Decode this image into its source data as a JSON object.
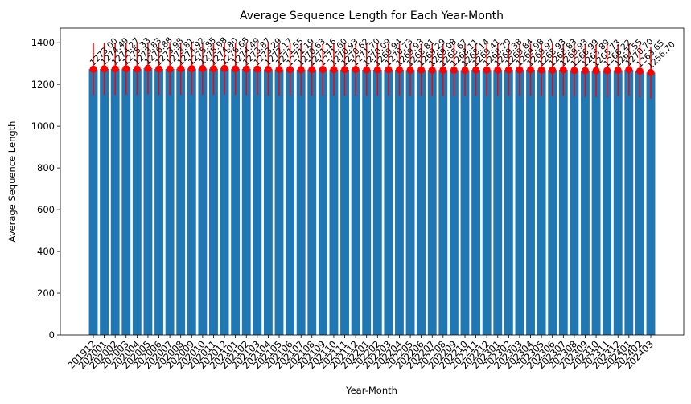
{
  "chart_data": {
    "type": "bar",
    "title": "Average Sequence Length for Each Year-Month",
    "xlabel": "Year-Month",
    "ylabel": "Average Sequence Length",
    "ylim": [
      0,
      1470
    ],
    "yticks": [
      0,
      200,
      400,
      600,
      800,
      1000,
      1200,
      1400
    ],
    "grid": false,
    "legend": "none",
    "colors": {
      "bar": "#1f77b4",
      "error": "#ff0000"
    },
    "categories": [
      "201912",
      "202001",
      "202002",
      "202003",
      "202004",
      "202005",
      "202006",
      "202007",
      "202008",
      "202009",
      "202010",
      "202011",
      "202012",
      "202101",
      "202102",
      "202103",
      "202104",
      "202105",
      "202106",
      "202107",
      "202108",
      "202109",
      "202110",
      "202111",
      "202112",
      "202201",
      "202202",
      "202203",
      "202204",
      "202205",
      "202206",
      "202207",
      "202208",
      "202209",
      "202210",
      "202211",
      "202212",
      "202301",
      "202302",
      "202303",
      "202304",
      "202305",
      "202306",
      "202307",
      "202308",
      "202309",
      "202310",
      "202311",
      "202312",
      "202401",
      "202402",
      "202403"
    ],
    "values": [
      1273.0,
      1274.49,
      1274.27,
      1275.33,
      1273.83,
      1276.88,
      1273.98,
      1273.81,
      1274.92,
      1275.85,
      1275.98,
      1274.8,
      1276.68,
      1274.49,
      1273.87,
      1273.29,
      1272.17,
      1271.55,
      1271.19,
      1270.63,
      1271.16,
      1271.6,
      1270.93,
      1270.62,
      1271.7,
      1270.09,
      1269.94,
      1270.73,
      1269.93,
      1268.81,
      1269.29,
      1269.08,
      1268.67,
      1268.11,
      1268.14,
      1269.41,
      1268.79,
      1269.38,
      1269.84,
      1269.98,
      1269.97,
      1268.93,
      1268.83,
      1269.93,
      1266.99,
      1265.89,
      1265.73,
      1266.22,
      1267.55,
      1270.7,
      1263.65,
      1256.7
    ],
    "labels": [
      "1273.00",
      "1274.49",
      "1274.27",
      "1275.33",
      "1273.83",
      "1276.88",
      "1273.98",
      "1273.81",
      "1274.92",
      "1275.85",
      "1275.98",
      "1274.80",
      "1276.68",
      "1274.49",
      "1273.87",
      "1273.29",
      "1272.17",
      "1271.55",
      "1271.19",
      "1270.63",
      "1271.16",
      "1271.60",
      "1270.93",
      "1270.62",
      "1271.70",
      "1270.09",
      "1269.94",
      "1270.73",
      "1269.93",
      "1268.81",
      "1269.29",
      "1269.08",
      "1268.67",
      "1268.11",
      "1268.14",
      "1269.41",
      "1268.79",
      "1269.38",
      "1269.84",
      "1269.98",
      "1269.97",
      "1268.93",
      "1268.83",
      "1269.93",
      "1266.99",
      "1265.89",
      "1265.73",
      "1266.22",
      "1267.55",
      "1270.70",
      "1263.65",
      "1256.70"
    ],
    "error": [
      125,
      125,
      125,
      125,
      125,
      125,
      125,
      125,
      125,
      125,
      125,
      125,
      125,
      125,
      125,
      125,
      125,
      125,
      125,
      125,
      125,
      125,
      125,
      125,
      125,
      125,
      125,
      125,
      125,
      125,
      125,
      125,
      125,
      125,
      125,
      125,
      125,
      125,
      125,
      125,
      125,
      125,
      125,
      125,
      125,
      125,
      125,
      125,
      125,
      125,
      125,
      125
    ]
  }
}
